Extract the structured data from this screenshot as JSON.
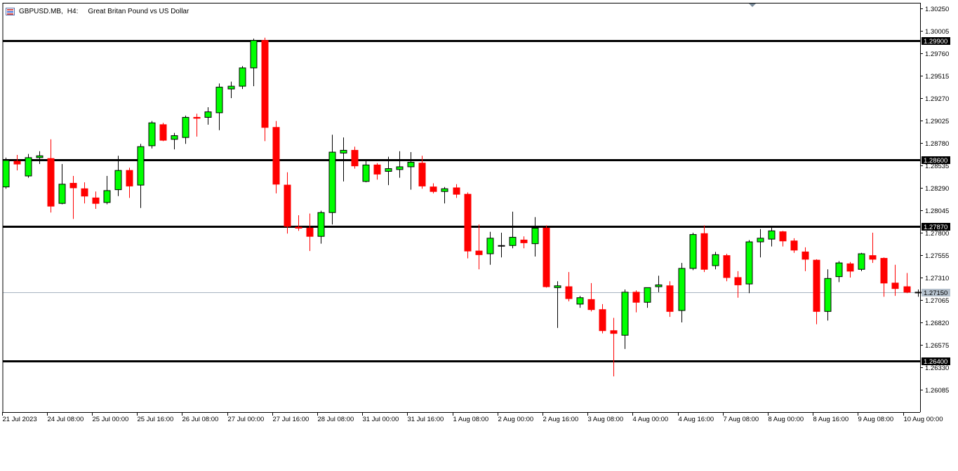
{
  "header": {
    "symbol": "GBPUSD.MB,",
    "timeframe": "H4:",
    "description": "Great Britan Pound vs US Dollar",
    "icon": "chart-window-icon"
  },
  "colors": {
    "bull": "#00ff00",
    "bear": "#ff0000",
    "wick_bull": "#000000",
    "bear_wick": "#ff0000",
    "level_line": "#000000",
    "current_price_line": "#a8b4c0",
    "axis": "#000000"
  },
  "chart_data": {
    "type": "candlestick",
    "symbol": "GBPUSD.MB",
    "timeframe": "H4",
    "ylim": [
      1.25945,
      1.30325
    ],
    "y_ticks": [
      "1.30250",
      "1.30005",
      "1.29760",
      "1.29515",
      "1.29270",
      "1.29025",
      "1.28780",
      "1.28535",
      "1.28290",
      "1.28045",
      "1.27800",
      "1.27555",
      "1.27310",
      "1.27065",
      "1.26820",
      "1.26575",
      "1.26330",
      "1.26085"
    ],
    "x_ticks": [
      {
        "index": 0,
        "label": "21 Jul 2023"
      },
      {
        "index": 4,
        "label": "24 Jul 08:00"
      },
      {
        "index": 8,
        "label": "25 Jul 00:00"
      },
      {
        "index": 12,
        "label": "25 Jul 16:00"
      },
      {
        "index": 16,
        "label": "26 Jul 08:00"
      },
      {
        "index": 20,
        "label": "27 Jul 00:00"
      },
      {
        "index": 24,
        "label": "27 Jul 16:00"
      },
      {
        "index": 28,
        "label": "28 Jul 08:00"
      },
      {
        "index": 32,
        "label": "31 Jul 00:00"
      },
      {
        "index": 36,
        "label": "31 Jul 16:00"
      },
      {
        "index": 40,
        "label": "1 Aug 08:00"
      },
      {
        "index": 44,
        "label": "2 Aug 00:00"
      },
      {
        "index": 48,
        "label": "2 Aug 16:00"
      },
      {
        "index": 52,
        "label": "3 Aug 08:00"
      },
      {
        "index": 56,
        "label": "4 Aug 00:00"
      },
      {
        "index": 60,
        "label": "4 Aug 16:00"
      },
      {
        "index": 64,
        "label": "7 Aug 08:00"
      },
      {
        "index": 68,
        "label": "8 Aug 00:00"
      },
      {
        "index": 72,
        "label": "8 Aug 16:00"
      },
      {
        "index": 76,
        "label": "9 Aug 08:00"
      },
      {
        "index": 80,
        "label": "10 Aug 00:00"
      }
    ],
    "levels": [
      {
        "price": 1.299,
        "label": "1.29900"
      },
      {
        "price": 1.286,
        "label": "1.28600"
      },
      {
        "price": 1.2787,
        "label": "1.27870"
      },
      {
        "price": 1.264,
        "label": "1.26400"
      }
    ],
    "current_price": {
      "price": 1.2715,
      "label": "1.27150"
    },
    "candles": [
      {
        "o": 1.283,
        "h": 1.2862,
        "l": 1.2828,
        "c": 1.2859
      },
      {
        "o": 1.2858,
        "h": 1.2865,
        "l": 1.2848,
        "c": 1.2855
      },
      {
        "o": 1.2842,
        "h": 1.2866,
        "l": 1.284,
        "c": 1.2862
      },
      {
        "o": 1.2862,
        "h": 1.2869,
        "l": 1.2855,
        "c": 1.2864
      },
      {
        "o": 1.2861,
        "h": 1.2882,
        "l": 1.2802,
        "c": 1.2809
      },
      {
        "o": 1.2812,
        "h": 1.2855,
        "l": 1.2811,
        "c": 1.2833
      },
      {
        "o": 1.2834,
        "h": 1.2842,
        "l": 1.2795,
        "c": 1.2829
      },
      {
        "o": 1.2828,
        "h": 1.2835,
        "l": 1.2812,
        "c": 1.282
      },
      {
        "o": 1.2818,
        "h": 1.2825,
        "l": 1.2806,
        "c": 1.2812
      },
      {
        "o": 1.2813,
        "h": 1.2842,
        "l": 1.2811,
        "c": 1.2826
      },
      {
        "o": 1.2827,
        "h": 1.2864,
        "l": 1.282,
        "c": 1.2848
      },
      {
        "o": 1.2848,
        "h": 1.2851,
        "l": 1.2818,
        "c": 1.2831
      },
      {
        "o": 1.2832,
        "h": 1.2877,
        "l": 1.2807,
        "c": 1.2874
      },
      {
        "o": 1.2875,
        "h": 1.2902,
        "l": 1.2872,
        "c": 1.29
      },
      {
        "o": 1.2898,
        "h": 1.29,
        "l": 1.288,
        "c": 1.2881
      },
      {
        "o": 1.2882,
        "h": 1.2889,
        "l": 1.2871,
        "c": 1.2886
      },
      {
        "o": 1.2884,
        "h": 1.2908,
        "l": 1.2877,
        "c": 1.2906
      },
      {
        "o": 1.2906,
        "h": 1.291,
        "l": 1.2885,
        "c": 1.2905
      },
      {
        "o": 1.2906,
        "h": 1.2917,
        "l": 1.2898,
        "c": 1.2912
      },
      {
        "o": 1.2911,
        "h": 1.2943,
        "l": 1.2892,
        "c": 1.2939
      },
      {
        "o": 1.2937,
        "h": 1.2945,
        "l": 1.2927,
        "c": 1.294
      },
      {
        "o": 1.294,
        "h": 1.2962,
        "l": 1.2937,
        "c": 1.296
      },
      {
        "o": 1.296,
        "h": 1.2992,
        "l": 1.294,
        "c": 1.299
      },
      {
        "o": 1.299,
        "h": 1.2993,
        "l": 1.288,
        "c": 1.2895
      },
      {
        "o": 1.2895,
        "h": 1.2902,
        "l": 1.2823,
        "c": 1.2833
      },
      {
        "o": 1.2832,
        "h": 1.2846,
        "l": 1.2779,
        "c": 1.2787
      },
      {
        "o": 1.2786,
        "h": 1.2799,
        "l": 1.2782,
        "c": 1.2785
      },
      {
        "o": 1.2785,
        "h": 1.2801,
        "l": 1.276,
        "c": 1.2776
      },
      {
        "o": 1.2776,
        "h": 1.2804,
        "l": 1.2768,
        "c": 1.2802
      },
      {
        "o": 1.2802,
        "h": 1.2887,
        "l": 1.2789,
        "c": 1.2868
      },
      {
        "o": 1.2867,
        "h": 1.2884,
        "l": 1.2836,
        "c": 1.287
      },
      {
        "o": 1.287,
        "h": 1.2874,
        "l": 1.285,
        "c": 1.2853
      },
      {
        "o": 1.2836,
        "h": 1.2859,
        "l": 1.2835,
        "c": 1.2854
      },
      {
        "o": 1.2854,
        "h": 1.2856,
        "l": 1.2838,
        "c": 1.2844
      },
      {
        "o": 1.2847,
        "h": 1.2863,
        "l": 1.2832,
        "c": 1.285
      },
      {
        "o": 1.2849,
        "h": 1.2869,
        "l": 1.284,
        "c": 1.2852
      },
      {
        "o": 1.2852,
        "h": 1.2868,
        "l": 1.2827,
        "c": 1.2857
      },
      {
        "o": 1.2856,
        "h": 1.2864,
        "l": 1.2828,
        "c": 1.2831
      },
      {
        "o": 1.283,
        "h": 1.2834,
        "l": 1.2823,
        "c": 1.2825
      },
      {
        "o": 1.2825,
        "h": 1.283,
        "l": 1.2812,
        "c": 1.2828
      },
      {
        "o": 1.2829,
        "h": 1.2833,
        "l": 1.2818,
        "c": 1.2822
      },
      {
        "o": 1.2822,
        "h": 1.2824,
        "l": 1.2752,
        "c": 1.276
      },
      {
        "o": 1.276,
        "h": 1.2789,
        "l": 1.274,
        "c": 1.2756
      },
      {
        "o": 1.2757,
        "h": 1.2781,
        "l": 1.2745,
        "c": 1.2774
      },
      {
        "o": 1.2766,
        "h": 1.278,
        "l": 1.2753,
        "c": 1.2766
      },
      {
        "o": 1.2766,
        "h": 1.2803,
        "l": 1.2763,
        "c": 1.2775
      },
      {
        "o": 1.2772,
        "h": 1.2776,
        "l": 1.2763,
        "c": 1.2769
      },
      {
        "o": 1.2768,
        "h": 1.2797,
        "l": 1.2754,
        "c": 1.2785
      },
      {
        "o": 1.2785,
        "h": 1.2788,
        "l": 1.272,
        "c": 1.2721
      },
      {
        "o": 1.272,
        "h": 1.2727,
        "l": 1.2676,
        "c": 1.2722
      },
      {
        "o": 1.2721,
        "h": 1.2737,
        "l": 1.2705,
        "c": 1.2708
      },
      {
        "o": 1.2702,
        "h": 1.2711,
        "l": 1.2698,
        "c": 1.2709
      },
      {
        "o": 1.2707,
        "h": 1.2725,
        "l": 1.2694,
        "c": 1.2696
      },
      {
        "o": 1.2696,
        "h": 1.2702,
        "l": 1.267,
        "c": 1.2673
      },
      {
        "o": 1.2673,
        "h": 1.2687,
        "l": 1.2623,
        "c": 1.267
      },
      {
        "o": 1.2668,
        "h": 1.2718,
        "l": 1.2653,
        "c": 1.2715
      },
      {
        "o": 1.2715,
        "h": 1.2717,
        "l": 1.2693,
        "c": 1.2704
      },
      {
        "o": 1.2704,
        "h": 1.2719,
        "l": 1.2698,
        "c": 1.272
      },
      {
        "o": 1.2721,
        "h": 1.2733,
        "l": 1.2715,
        "c": 1.2723
      },
      {
        "o": 1.2722,
        "h": 1.2727,
        "l": 1.2688,
        "c": 1.2694
      },
      {
        "o": 1.2695,
        "h": 1.2747,
        "l": 1.2682,
        "c": 1.2741
      },
      {
        "o": 1.2741,
        "h": 1.278,
        "l": 1.2739,
        "c": 1.2778
      },
      {
        "o": 1.2779,
        "h": 1.2788,
        "l": 1.2737,
        "c": 1.274
      },
      {
        "o": 1.2744,
        "h": 1.2759,
        "l": 1.274,
        "c": 1.2756
      },
      {
        "o": 1.2755,
        "h": 1.2757,
        "l": 1.2727,
        "c": 1.2731
      },
      {
        "o": 1.2731,
        "h": 1.2738,
        "l": 1.2709,
        "c": 1.2723
      },
      {
        "o": 1.2724,
        "h": 1.2772,
        "l": 1.2714,
        "c": 1.277
      },
      {
        "o": 1.277,
        "h": 1.2784,
        "l": 1.2753,
        "c": 1.2774
      },
      {
        "o": 1.2773,
        "h": 1.2786,
        "l": 1.2765,
        "c": 1.2782
      },
      {
        "o": 1.2781,
        "h": 1.2782,
        "l": 1.2765,
        "c": 1.2771
      },
      {
        "o": 1.2771,
        "h": 1.2774,
        "l": 1.2758,
        "c": 1.2761
      },
      {
        "o": 1.2759,
        "h": 1.2764,
        "l": 1.2738,
        "c": 1.2751
      },
      {
        "o": 1.275,
        "h": 1.2751,
        "l": 1.268,
        "c": 1.2694
      },
      {
        "o": 1.2694,
        "h": 1.274,
        "l": 1.2684,
        "c": 1.273
      },
      {
        "o": 1.2732,
        "h": 1.2749,
        "l": 1.2726,
        "c": 1.2747
      },
      {
        "o": 1.2746,
        "h": 1.2748,
        "l": 1.2731,
        "c": 1.2738
      },
      {
        "o": 1.274,
        "h": 1.2758,
        "l": 1.2738,
        "c": 1.2757
      },
      {
        "o": 1.2755,
        "h": 1.278,
        "l": 1.2747,
        "c": 1.2751
      },
      {
        "o": 1.2752,
        "h": 1.2753,
        "l": 1.271,
        "c": 1.2725
      },
      {
        "o": 1.2725,
        "h": 1.2745,
        "l": 1.2711,
        "c": 1.2719
      },
      {
        "o": 1.2721,
        "h": 1.2736,
        "l": 1.2714,
        "c": 1.2715
      },
      {
        "o": 1.2715,
        "h": 1.2718,
        "l": 1.271,
        "c": 1.2715
      }
    ]
  }
}
